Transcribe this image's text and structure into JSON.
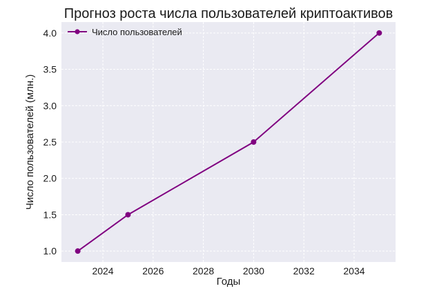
{
  "chart_data": {
    "type": "line",
    "title": "Прогноз роста числа пользователей криптоактивов",
    "xlabel": "Годы",
    "ylabel": "Число пользователей (млн.)",
    "x": [
      2023,
      2025,
      2030,
      2035
    ],
    "series": [
      {
        "name": "Число пользователей",
        "values": [
          1.0,
          1.5,
          2.5,
          4.0
        ],
        "color": "#800080"
      }
    ],
    "xlim": [
      2022.35,
      2035.65
    ],
    "ylim": [
      0.85,
      4.15
    ],
    "xticks": [
      2024,
      2026,
      2028,
      2030,
      2032,
      2034
    ],
    "xtick_labels": [
      "2024",
      "2026",
      "2028",
      "2030",
      "2032",
      "2034"
    ],
    "yticks": [
      1.0,
      1.5,
      2.0,
      2.5,
      3.0,
      3.5,
      4.0
    ],
    "ytick_labels": [
      "1.0",
      "1.5",
      "2.0",
      "2.5",
      "3.0",
      "3.5",
      "4.0"
    ],
    "grid": true,
    "legend_position": "upper-left",
    "colors": {
      "plot_background": "#eaeaf2",
      "grid": "#ffffff",
      "line": "#800080"
    }
  }
}
